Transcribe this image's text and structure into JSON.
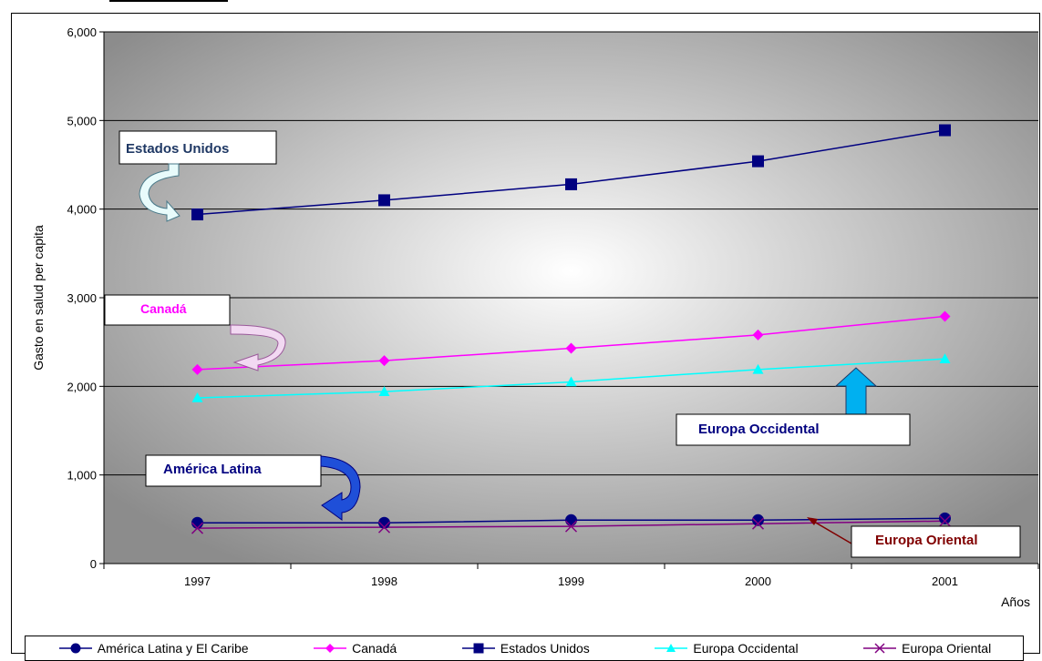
{
  "chart_data": {
    "type": "line",
    "title": "",
    "xlabel": "Años",
    "ylabel": "Gasto en salud per capita",
    "categories": [
      "1997",
      "1998",
      "1999",
      "2000",
      "2001"
    ],
    "ylim": [
      0,
      6000
    ],
    "yticks": [
      "0",
      "1,000",
      "2,000",
      "3,000",
      "4,000",
      "5,000",
      "6,000"
    ],
    "ytick_values": [
      0,
      1000,
      2000,
      3000,
      4000,
      5000,
      6000
    ],
    "grid": true,
    "legend_position": "bottom",
    "series": [
      {
        "name": "América Latina y El Caribe",
        "values": [
          460,
          460,
          490,
          490,
          510
        ],
        "color": "#000080",
        "marker": "circle"
      },
      {
        "name": "Canadá",
        "values": [
          2190,
          2290,
          2430,
          2580,
          2790
        ],
        "color": "#ff00ff",
        "marker": "diamond"
      },
      {
        "name": "Estados Unidos",
        "values": [
          3940,
          4100,
          4280,
          4540,
          4890
        ],
        "color": "#000080",
        "marker": "square"
      },
      {
        "name": "Europa Occidental",
        "values": [
          1870,
          1940,
          2050,
          2190,
          2310
        ],
        "color": "#00ffff",
        "marker": "triangle"
      },
      {
        "name": "Europa Oriental",
        "values": [
          400,
          410,
          420,
          450,
          480
        ],
        "color": "#800080",
        "marker": "x"
      }
    ],
    "annotations": [
      {
        "text": "Estados Unidos",
        "color": "#1f3864"
      },
      {
        "text": "Canadá",
        "color": "#ff00ff"
      },
      {
        "text": "Europa Occidental",
        "color": "#000080"
      },
      {
        "text": "América Latina",
        "color": "#000080"
      },
      {
        "text": "Europa Oriental",
        "color": "#800000"
      }
    ]
  }
}
